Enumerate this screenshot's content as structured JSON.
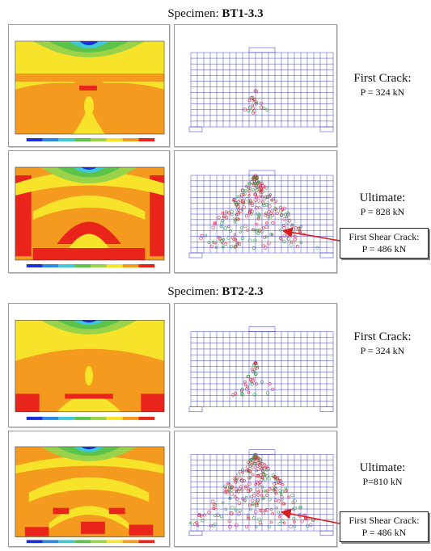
{
  "figure": {
    "specimens": [
      {
        "prefix": "Specimen:",
        "name": "BT1-3.3",
        "first_crack": {
          "heading": "First Crack:",
          "value": "P = 324 kN"
        },
        "ultimate": {
          "heading": "Ultimate:",
          "value": "P = 828 kN"
        },
        "shear_crack": {
          "heading": "First Shear Crack:",
          "value": "P = 486 kN"
        }
      },
      {
        "prefix": "Specimen:",
        "name": "BT2-2.3",
        "first_crack": {
          "heading": "First Crack:",
          "value": "P = 324 kN"
        },
        "ultimate": {
          "heading": "Ultimate:",
          "value": "P=810 kN"
        },
        "shear_crack": {
          "heading": "First Shear Crack:",
          "value": "P = 486 kN"
        }
      }
    ],
    "colors": {
      "contour_red": "#e8241b",
      "contour_orange": "#f49a1e",
      "contour_yellow": "#f8e32b",
      "contour_green": "#5bc24a",
      "contour_cyan": "#3fc8d8",
      "contour_blue": "#1b2fd6",
      "mesh_blue": "#2a2ad8",
      "crack_red": "#d8324a",
      "arrow_red": "#d81e1e"
    }
  }
}
